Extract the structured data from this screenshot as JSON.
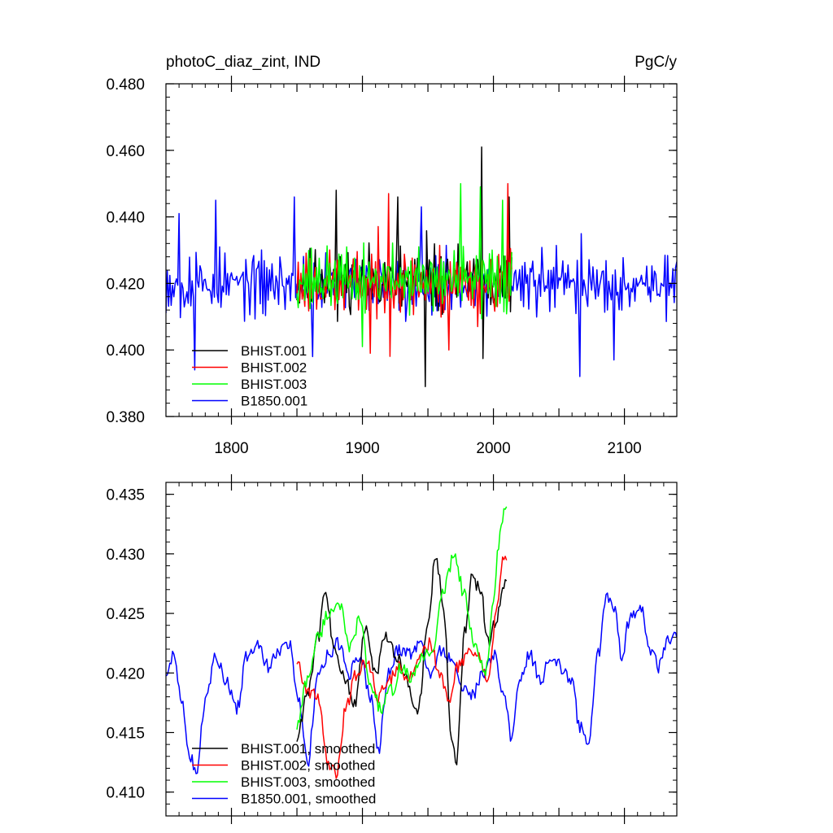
{
  "chart_data": [
    {
      "type": "line",
      "title_left": "photoC_diaz_zint, IND",
      "title_right": "PgC/y",
      "xlim": [
        1750,
        2140
      ],
      "ylim": [
        0.38,
        0.48
      ],
      "x_ticks": [
        "1800",
        "1900",
        "2000",
        "2100"
      ],
      "y_ticks": [
        "0.380",
        "0.400",
        "0.420",
        "0.440",
        "0.460",
        "0.480"
      ],
      "legend": {
        "placement": "lower-left",
        "entries": [
          "BHIST.001",
          "BHIST.002",
          "BHIST.003",
          "B1850.001"
        ]
      },
      "series": [
        {
          "name": "BHIST.001",
          "color": "#000000",
          "x_range": [
            1850,
            2014
          ],
          "seed": 11,
          "mean": 0.421,
          "amp": 0.009,
          "smooth": 0,
          "peaks": [
            [
              1991,
              0.461
            ],
            [
              1948,
              0.389
            ],
            [
              1880,
              0.448
            ],
            [
              1927,
              0.446
            ],
            [
              2012,
              0.446
            ]
          ]
        },
        {
          "name": "BHIST.002",
          "color": "#ff0000",
          "x_range": [
            1850,
            2014
          ],
          "seed": 23,
          "mean": 0.42,
          "amp": 0.009,
          "smooth": 0,
          "peaks": [
            [
              2011,
              0.45
            ],
            [
              1920,
              0.447
            ],
            [
              1906,
              0.399
            ],
            [
              1966,
              0.4
            ]
          ]
        },
        {
          "name": "BHIST.003",
          "color": "#00ff00",
          "x_range": [
            1850,
            2014
          ],
          "seed": 37,
          "mean": 0.421,
          "amp": 0.008,
          "smooth": 0,
          "peaks": [
            [
              1975,
              0.45
            ],
            [
              1990,
              0.449
            ],
            [
              1900,
              0.401
            ],
            [
              2007,
              0.445
            ]
          ]
        },
        {
          "name": "B1850.001",
          "color": "#0000ff",
          "x_range": [
            1750,
            2140
          ],
          "seed": 53,
          "mean": 0.42,
          "amp": 0.008,
          "smooth": 0,
          "peaks": [
            [
              1760,
              0.441
            ],
            [
              1788,
              0.445
            ],
            [
              1772,
              0.394
            ],
            [
              1848,
              0.446
            ],
            [
              2066,
              0.392
            ],
            [
              2092,
              0.397
            ],
            [
              1862,
              0.398
            ],
            [
              1945,
              0.443
            ]
          ]
        }
      ]
    },
    {
      "type": "line",
      "xlim": [
        1750,
        2140
      ],
      "ylim": [
        0.408,
        0.436
      ],
      "x_ticks": [],
      "y_ticks": [
        "0.410",
        "0.415",
        "0.420",
        "0.425",
        "0.430",
        "0.435"
      ],
      "legend": {
        "placement": "lower-left",
        "entries": [
          "BHIST.001, smoothed",
          "BHIST.002, smoothed",
          "BHIST.003, smoothed",
          "B1850.001, smoothed"
        ]
      },
      "series": [
        {
          "name": "BHIST.001, smoothed",
          "color": "#000000",
          "x_range": [
            1850,
            2010
          ],
          "seed": 11,
          "mean": 0.42,
          "amp": 0.0025,
          "smooth": 1,
          "knots": [
            [
              1850,
              0.4145
            ],
            [
              1858,
              0.4185
            ],
            [
              1866,
              0.423
            ],
            [
              1872,
              0.4268
            ],
            [
              1878,
              0.4225
            ],
            [
              1886,
              0.4195
            ],
            [
              1894,
              0.4175
            ],
            [
              1902,
              0.4235
            ],
            [
              1910,
              0.42
            ],
            [
              1918,
              0.423
            ],
            [
              1926,
              0.4215
            ],
            [
              1934,
              0.4195
            ],
            [
              1942,
              0.4165
            ],
            [
              1950,
              0.424
            ],
            [
              1956,
              0.43
            ],
            [
              1962,
              0.4255
            ],
            [
              1968,
              0.414
            ],
            [
              1972,
              0.4128
            ],
            [
              1978,
              0.4235
            ],
            [
              1984,
              0.428
            ],
            [
              1990,
              0.427
            ],
            [
              1996,
              0.4225
            ],
            [
              2002,
              0.4245
            ],
            [
              2008,
              0.4275
            ]
          ]
        },
        {
          "name": "BHIST.002, smoothed",
          "color": "#ff0000",
          "x_range": [
            1850,
            2010
          ],
          "seed": 23,
          "mean": 0.42,
          "amp": 0.0025,
          "smooth": 1,
          "knots": [
            [
              1850,
              0.421
            ],
            [
              1858,
              0.4185
            ],
            [
              1866,
              0.418
            ],
            [
              1874,
              0.4125
            ],
            [
              1880,
              0.4115
            ],
            [
              1888,
              0.4175
            ],
            [
              1896,
              0.42
            ],
            [
              1904,
              0.421
            ],
            [
              1912,
              0.418
            ],
            [
              1920,
              0.4195
            ],
            [
              1928,
              0.4205
            ],
            [
              1936,
              0.4195
            ],
            [
              1944,
              0.4215
            ],
            [
              1952,
              0.4225
            ],
            [
              1960,
              0.4195
            ],
            [
              1966,
              0.4175
            ],
            [
              1972,
              0.4205
            ],
            [
              1980,
              0.4215
            ],
            [
              1988,
              0.4215
            ],
            [
              1996,
              0.419
            ],
            [
              2002,
              0.425
            ],
            [
              2008,
              0.4295
            ]
          ]
        },
        {
          "name": "BHIST.003, smoothed",
          "color": "#00ff00",
          "x_range": [
            1850,
            2010
          ],
          "seed": 37,
          "mean": 0.421,
          "amp": 0.0025,
          "smooth": 1,
          "knots": [
            [
              1850,
              0.4155
            ],
            [
              1858,
              0.4195
            ],
            [
              1866,
              0.423
            ],
            [
              1874,
              0.425
            ],
            [
              1882,
              0.426
            ],
            [
              1890,
              0.422
            ],
            [
              1898,
              0.4245
            ],
            [
              1906,
              0.419
            ],
            [
              1914,
              0.417
            ],
            [
              1922,
              0.4185
            ],
            [
              1930,
              0.4205
            ],
            [
              1938,
              0.4195
            ],
            [
              1946,
              0.4215
            ],
            [
              1954,
              0.422
            ],
            [
              1962,
              0.427
            ],
            [
              1970,
              0.43
            ],
            [
              1978,
              0.4265
            ],
            [
              1986,
              0.422
            ],
            [
              1994,
              0.42
            ],
            [
              2000,
              0.4255
            ],
            [
              2004,
              0.431
            ],
            [
              2008,
              0.4335
            ]
          ]
        },
        {
          "name": "B1850.001, smoothed",
          "color": "#0000ff",
          "x_range": [
            1750,
            2140
          ],
          "seed": 53,
          "mean": 0.42,
          "amp": 0.0022,
          "smooth": 1,
          "knots": [
            [
              1750,
              0.42
            ],
            [
              1755,
              0.4215
            ],
            [
              1762,
              0.418
            ],
            [
              1768,
              0.413
            ],
            [
              1773,
              0.4118
            ],
            [
              1780,
              0.4175
            ],
            [
              1788,
              0.4215
            ],
            [
              1796,
              0.4195
            ],
            [
              1804,
              0.417
            ],
            [
              1812,
              0.4215
            ],
            [
              1820,
              0.4225
            ],
            [
              1828,
              0.4205
            ],
            [
              1836,
              0.422
            ],
            [
              1844,
              0.4225
            ],
            [
              1852,
              0.4175
            ],
            [
              1858,
              0.4125
            ],
            [
              1866,
              0.4195
            ],
            [
              1874,
              0.4215
            ],
            [
              1882,
              0.4225
            ],
            [
              1890,
              0.42
            ],
            [
              1898,
              0.4215
            ],
            [
              1906,
              0.418
            ],
            [
              1912,
              0.4135
            ],
            [
              1920,
              0.42
            ],
            [
              1928,
              0.422
            ],
            [
              1936,
              0.4215
            ],
            [
              1944,
              0.4225
            ],
            [
              1952,
              0.4195
            ],
            [
              1960,
              0.422
            ],
            [
              1968,
              0.421
            ],
            [
              1976,
              0.4185
            ],
            [
              1984,
              0.418
            ],
            [
              1992,
              0.42
            ],
            [
              2000,
              0.4215
            ],
            [
              2008,
              0.418
            ],
            [
              2014,
              0.4145
            ],
            [
              2020,
              0.4195
            ],
            [
              2028,
              0.4215
            ],
            [
              2036,
              0.4195
            ],
            [
              2044,
              0.4215
            ],
            [
              2052,
              0.4205
            ],
            [
              2060,
              0.419
            ],
            [
              2066,
              0.4155
            ],
            [
              2072,
              0.414
            ],
            [
              2080,
              0.4215
            ],
            [
              2086,
              0.4265
            ],
            [
              2092,
              0.4255
            ],
            [
              2098,
              0.4215
            ],
            [
              2104,
              0.4245
            ],
            [
              2112,
              0.4255
            ],
            [
              2120,
              0.422
            ],
            [
              2126,
              0.4205
            ],
            [
              2132,
              0.4225
            ],
            [
              2138,
              0.4235
            ]
          ]
        }
      ]
    }
  ]
}
